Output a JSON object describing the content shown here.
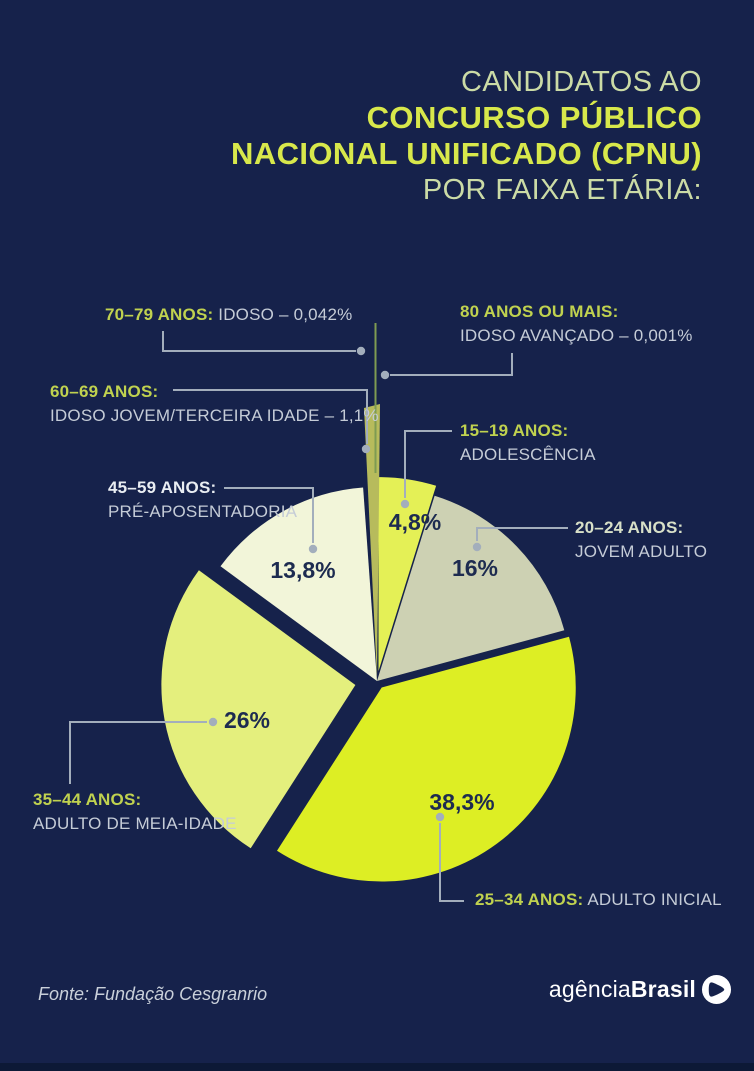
{
  "header": {
    "line1": "CANDIDATOS AO",
    "line2": "CONCURSO PÚBLICO",
    "line3": "NACIONAL UNIFICADO (CPNU)",
    "line4": "POR FAIXA ETÁRIA:"
  },
  "callouts": {
    "age_70_79": {
      "range": "70–79 ANOS:",
      "desc": "IDOSO –  0,042%"
    },
    "age_80": {
      "range": "80 ANOS OU MAIS:",
      "desc": "IDOSO AVANÇADO – 0,001%"
    },
    "age_60_69": {
      "range": "60–69 ANOS:",
      "desc": "IDOSO JOVEM/TERCEIRA IDADE – 1,1%"
    },
    "age_15_19": {
      "range": "15–19 ANOS:",
      "desc": "ADOLESCÊNCIA"
    },
    "age_20_24": {
      "range": "20–24 ANOS:",
      "desc": "JOVEM ADULTO"
    },
    "age_45_59": {
      "range": "45–59 ANOS:",
      "desc": "PRÉ-APOSENTADORIA"
    },
    "age_35_44": {
      "range": "35–44 ANOS:",
      "desc": "ADULTO DE MEIA-IDADE"
    },
    "age_25_34": {
      "range": "25–34 ANOS:",
      "desc": "ADULTO INICIAL"
    }
  },
  "chart_data": {
    "type": "pie",
    "title": "Candidatos ao Concurso Público Nacional Unificado (CPNU) por faixa etária",
    "unit": "%",
    "start_angle_deg": 0,
    "direction": "clockwise",
    "slices": [
      {
        "id": "15-19",
        "category": "15–19 anos (Adolescência)",
        "value": 4.8,
        "display": "4,8%",
        "color": "#e4f056",
        "render": "wedge"
      },
      {
        "id": "20-24",
        "category": "20–24 anos (Jovem adulto)",
        "value": 16,
        "display": "16%",
        "color": "#cdd1b3",
        "render": "wedge"
      },
      {
        "id": "25-34",
        "category": "25–34 anos (Adulto inicial)",
        "value": 38.3,
        "display": "38,3%",
        "color": "#ddee24",
        "render": "wedge"
      },
      {
        "id": "35-44",
        "category": "35–44 anos (Adulto de meia-idade)",
        "value": 26,
        "display": "26%",
        "color": "#e4ef7d",
        "render": "wedge"
      },
      {
        "id": "45-59",
        "category": "45–59 anos (Pré-aposentadoria)",
        "value": 13.8,
        "display": "13,8%",
        "color": "#f2f5d9",
        "render": "wedge"
      },
      {
        "id": "60-69",
        "category": "60–69 anos (Idoso jovem/terceira idade)",
        "value": 1.1,
        "display": "1,1%",
        "color": "#b7bb5c",
        "render": "blade"
      },
      {
        "id": "70-79",
        "category": "70–79 anos (Idoso)",
        "value": 0.042,
        "display": "0,042%",
        "color": "#7e9b52",
        "render": "hairline"
      },
      {
        "id": "80plus",
        "category": "80 anos ou mais (Idoso avançado)",
        "value": 0.001,
        "display": "0,001%",
        "color": "#7e9b52",
        "render": "none"
      }
    ],
    "legend_position": "callouts-around-pie",
    "grid": false
  },
  "footer": {
    "source": "Fonte: Fundação Cesgranrio",
    "logo_light": "agência",
    "logo_bold": "Brasil"
  },
  "colors": {
    "background": "#16224b",
    "title_pale_green": "#cbdba6",
    "title_bright_green": "#d8e84b",
    "label_green": "#c0d24f",
    "label_pale": "#d8e0c8",
    "label_white": "#e9edf2",
    "label_gray": "#c5ccd7",
    "leader_line": "#a3aebc",
    "pct_text": "#1d2b50",
    "logo_white": "#ffffff"
  }
}
